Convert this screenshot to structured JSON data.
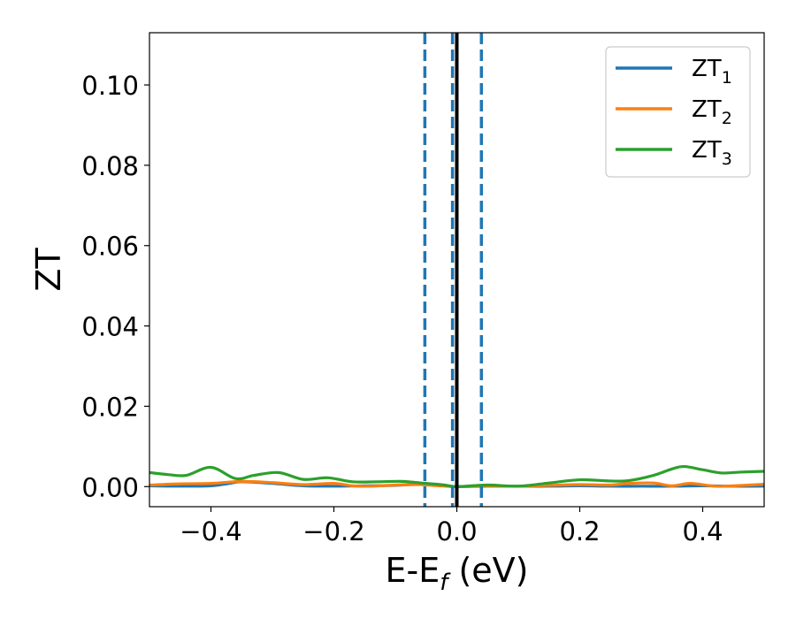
{
  "chart_data": {
    "type": "line",
    "xlabel": {
      "main": "E-E",
      "sub": "f",
      "tail": " (eV)"
    },
    "ylabel": "ZT",
    "xlim": [
      -0.5,
      0.5
    ],
    "ylim": [
      -0.005,
      0.113
    ],
    "xticks": [
      -0.4,
      -0.2,
      0.0,
      0.2,
      0.4
    ],
    "xtick_labels": [
      "−0.4",
      "−0.2",
      "0.0",
      "0.2",
      "0.4"
    ],
    "yticks": [
      0.0,
      0.02,
      0.04,
      0.06,
      0.08,
      0.1
    ],
    "ytick_labels": [
      "0.00",
      "0.02",
      "0.04",
      "0.06",
      "0.08",
      "0.10"
    ],
    "grid": false,
    "legend_position": "top-right",
    "vlines": [
      {
        "x": -0.052,
        "style": "dashed",
        "color": "#1f77b4"
      },
      {
        "x": -0.007,
        "style": "dashed",
        "color": "#1f77b4"
      },
      {
        "x": 0.0,
        "style": "solid",
        "color": "#000000"
      },
      {
        "x": 0.04,
        "style": "dashed",
        "color": "#1f77b4"
      }
    ],
    "series": [
      {
        "name": "ZT",
        "sub": "1",
        "color": "#1f77b4",
        "x": [
          -0.5,
          -0.45,
          -0.4,
          -0.37,
          -0.35,
          -0.3,
          -0.25,
          -0.2,
          -0.15,
          -0.1,
          -0.06,
          -0.03,
          0.0,
          0.05,
          0.1,
          0.15,
          0.2,
          0.25,
          0.3,
          0.35,
          0.4,
          0.45,
          0.5
        ],
        "y": [
          0.0002,
          0.0001,
          0.0002,
          0.0008,
          0.0012,
          0.0008,
          0.0002,
          0.0001,
          0.0002,
          0.0003,
          0.0006,
          0.0003,
          0.0,
          0.0001,
          0.0001,
          0.0001,
          0.0002,
          0.0001,
          0.0001,
          0.0001,
          0.0002,
          0.0001,
          0.0001
        ]
      },
      {
        "name": "ZT",
        "sub": "2",
        "color": "#ff7f0e",
        "x": [
          -0.5,
          -0.45,
          -0.4,
          -0.35,
          -0.3,
          -0.25,
          -0.2,
          -0.17,
          -0.14,
          -0.1,
          -0.06,
          -0.03,
          0.0,
          0.05,
          0.1,
          0.15,
          0.2,
          0.25,
          0.28,
          0.32,
          0.35,
          0.38,
          0.42,
          0.45,
          0.5
        ],
        "y": [
          0.0004,
          0.0007,
          0.0008,
          0.0013,
          0.001,
          0.0005,
          0.0008,
          0.0002,
          0.0001,
          0.0004,
          0.0005,
          0.0002,
          0.0,
          0.0002,
          0.0001,
          0.0003,
          0.0005,
          0.0004,
          0.0008,
          0.0009,
          0.0002,
          0.0008,
          0.0001,
          0.0002,
          0.0006
        ]
      },
      {
        "name": "ZT",
        "sub": "3",
        "color": "#2ca02c",
        "x": [
          -0.5,
          -0.47,
          -0.44,
          -0.4,
          -0.36,
          -0.33,
          -0.29,
          -0.25,
          -0.21,
          -0.17,
          -0.13,
          -0.09,
          -0.05,
          -0.02,
          0.0,
          0.05,
          0.1,
          0.15,
          0.2,
          0.25,
          0.28,
          0.32,
          0.35,
          0.37,
          0.4,
          0.43,
          0.46,
          0.5
        ],
        "y": [
          0.0035,
          0.003,
          0.0028,
          0.0048,
          0.002,
          0.0028,
          0.0035,
          0.0018,
          0.0022,
          0.0012,
          0.0012,
          0.0013,
          0.0008,
          0.0004,
          0.0,
          0.0004,
          0.0001,
          0.0009,
          0.0017,
          0.0014,
          0.0015,
          0.0028,
          0.0044,
          0.005,
          0.0042,
          0.0034,
          0.0036,
          0.0038
        ]
      }
    ]
  }
}
